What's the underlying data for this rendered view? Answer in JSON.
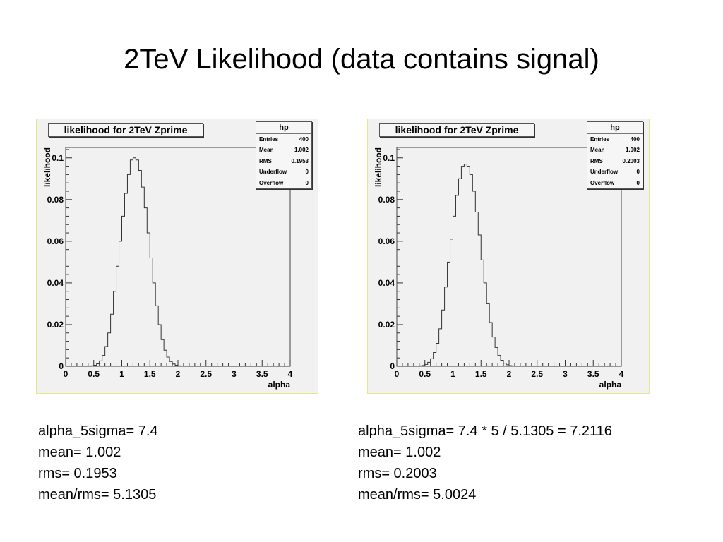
{
  "slide": {
    "title": "2TeV Likelihood (data contains signal)"
  },
  "panels": [
    {
      "plot_title": "likelihood for 2TeV Zprime",
      "stats": {
        "title": "hp",
        "entries_label": "Entries",
        "entries": "400",
        "mean_label": "Mean",
        "mean": "1.002",
        "rms_label": "RMS",
        "rms": "0.1953",
        "underflow_label": "Underflow",
        "underflow": "0",
        "overflow_label": "Overflow",
        "overflow": "0"
      },
      "notes": [
        "alpha_5sigma= 7.4",
        "mean= 1.002",
        "rms= 0.1953",
        "mean/rms= 5.1305"
      ]
    },
    {
      "plot_title": "likelihood for 2TeV Zprime",
      "stats": {
        "title": "hp",
        "entries_label": "Entries",
        "entries": "400",
        "mean_label": "Mean",
        "mean": "1.002",
        "rms_label": "RMS",
        "rms": "0.2003",
        "underflow_label": "Underflow",
        "underflow": "0",
        "overflow_label": "Overflow",
        "overflow": "0"
      },
      "notes": [
        "alpha_5sigma= 7.4 * 5 / 5.1305 = 7.2116",
        "mean= 1.002",
        "rms= 0.2003",
        "mean/rms= 5.0024"
      ]
    }
  ],
  "chart_data": [
    {
      "type": "histogram",
      "title": "likelihood for 2TeV Zprime",
      "xlabel": "alpha",
      "ylabel": "likelihood",
      "xlim": [
        0,
        4
      ],
      "ylim": [
        0,
        0.105
      ],
      "xticks": [
        "0",
        "0.5",
        "1",
        "1.5",
        "2",
        "2.5",
        "3",
        "3.5",
        "4"
      ],
      "yticks": [
        "0",
        "0.02",
        "0.04",
        "0.06",
        "0.08",
        "0.1"
      ],
      "bin_width": 0.05,
      "values": [
        0,
        0,
        0,
        0,
        0,
        0,
        0,
        0,
        0.0001,
        0.0002,
        0.0005,
        0.0012,
        0.0026,
        0.0052,
        0.0095,
        0.016,
        0.025,
        0.036,
        0.048,
        0.06,
        0.072,
        0.083,
        0.092,
        0.099,
        0.1,
        0.099,
        0.094,
        0.086,
        0.076,
        0.064,
        0.052,
        0.04,
        0.029,
        0.02,
        0.0128,
        0.0077,
        0.0044,
        0.0023,
        0.0011,
        0.0005,
        0.0002,
        0.0001,
        0,
        0,
        0,
        0,
        0,
        0,
        0,
        0,
        0,
        0,
        0,
        0,
        0,
        0,
        0,
        0,
        0,
        0,
        0,
        0,
        0,
        0,
        0,
        0,
        0,
        0,
        0,
        0,
        0,
        0,
        0,
        0,
        0,
        0,
        0,
        0,
        0,
        0
      ]
    },
    {
      "type": "histogram",
      "title": "likelihood for 2TeV Zprime",
      "xlabel": "alpha",
      "ylabel": "likelihood",
      "xlim": [
        0,
        4
      ],
      "ylim": [
        0,
        0.105
      ],
      "xticks": [
        "0",
        "0.5",
        "1",
        "1.5",
        "2",
        "2.5",
        "3",
        "3.5",
        "4"
      ],
      "yticks": [
        "0",
        "0.02",
        "0.04",
        "0.06",
        "0.08",
        "0.1"
      ],
      "bin_width": 0.05,
      "values": [
        0,
        0,
        0,
        0,
        0,
        0,
        0,
        0,
        0.0002,
        0.0004,
        0.0009,
        0.0019,
        0.0036,
        0.0066,
        0.011,
        0.018,
        0.027,
        0.038,
        0.05,
        0.061,
        0.072,
        0.082,
        0.09,
        0.096,
        0.097,
        0.096,
        0.092,
        0.084,
        0.074,
        0.063,
        0.051,
        0.04,
        0.03,
        0.021,
        0.014,
        0.009,
        0.0052,
        0.0029,
        0.0015,
        0.0007,
        0.0003,
        0.0001,
        0,
        0,
        0,
        0,
        0,
        0,
        0,
        0,
        0,
        0,
        0,
        0,
        0,
        0,
        0,
        0,
        0,
        0,
        0,
        0,
        0,
        0,
        0,
        0,
        0,
        0,
        0,
        0,
        0,
        0,
        0,
        0,
        0,
        0,
        0,
        0,
        0,
        0
      ]
    }
  ]
}
